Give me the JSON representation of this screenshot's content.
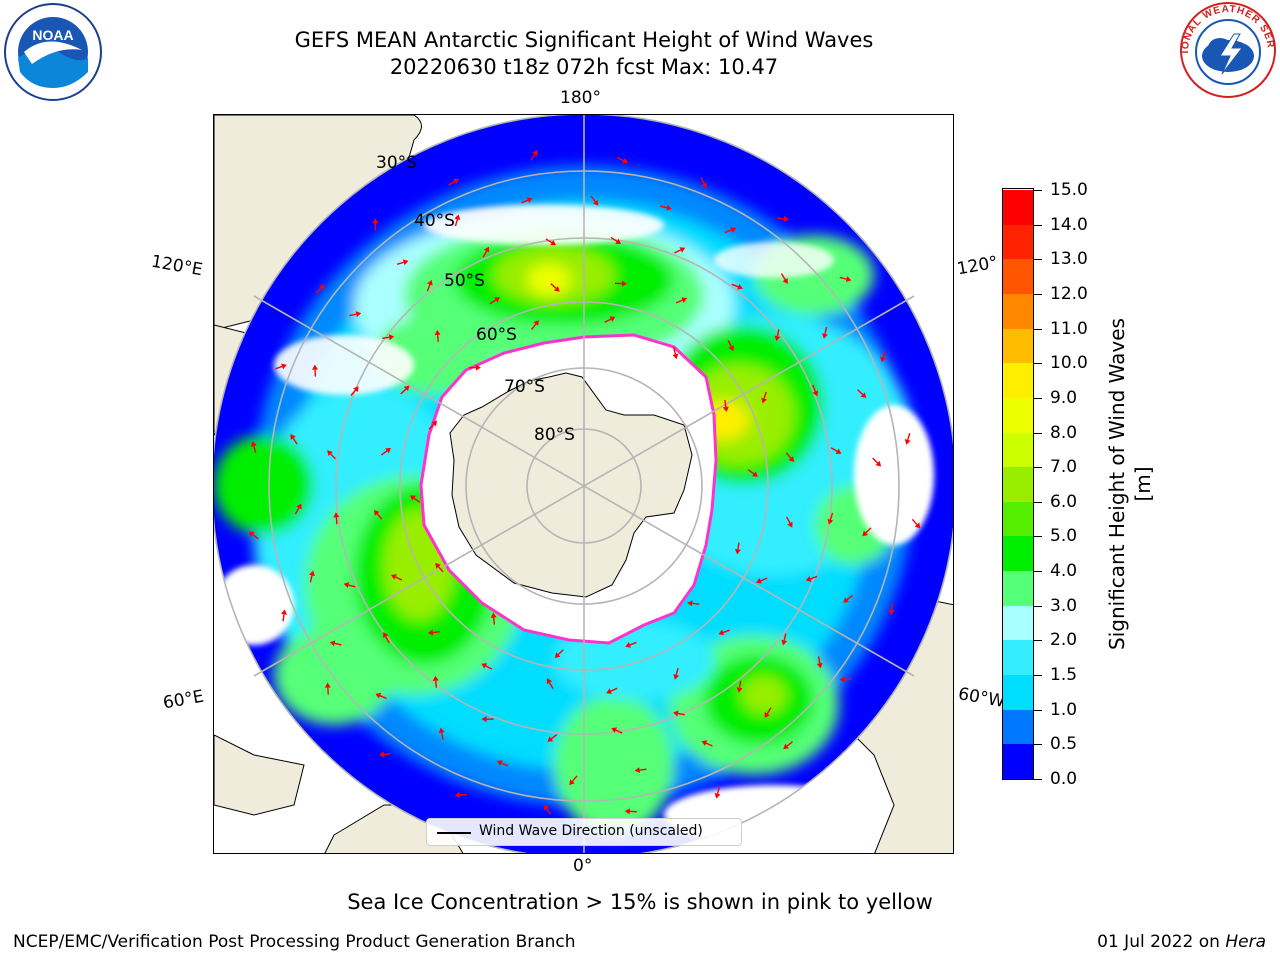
{
  "header": {
    "title": "GEFS MEAN Antarctic Significant Height of Wind Waves",
    "subtitle": "20220630 t18z 072h fcst   Max: 10.47"
  },
  "map": {
    "longitude_labels": {
      "top": "180°",
      "bottom": "0°",
      "upper_left": "120°E",
      "upper_right": "120°",
      "lower_left": "60°E",
      "lower_right": "60°W"
    },
    "latitude_labels": [
      "30°S",
      "40°S",
      "50°S",
      "60°S",
      "70°S",
      "80°S"
    ],
    "legend_label": "Wind Wave Direction (unscaled)",
    "colors": {
      "land": "#efecdc",
      "sea_ice_edge": "#ff33cc",
      "arrows": "#ff0000",
      "gridlines": "#b5b5b5"
    }
  },
  "colorbar": {
    "label": "Significant Height of Wind Waves [m]",
    "ticks": [
      "0.0",
      "0.5",
      "1.0",
      "1.5",
      "2.0",
      "3.0",
      "4.0",
      "5.0",
      "6.0",
      "7.0",
      "8.0",
      "9.0",
      "10.0",
      "11.0",
      "12.0",
      "13.0",
      "14.0",
      "15.0"
    ],
    "colors": [
      "#0000ff",
      "#0077ff",
      "#00ddff",
      "#33eeff",
      "#aaffff",
      "#55ff77",
      "#00ee00",
      "#55ee00",
      "#99ee00",
      "#ccff00",
      "#eeff00",
      "#ffee00",
      "#ffbb00",
      "#ff8800",
      "#ff5500",
      "#ff2200",
      "#ff0000"
    ]
  },
  "notes": {
    "sea_ice": "Sea Ice Concentration > 15% is shown in pink to yellow"
  },
  "footer": {
    "left": "NCEP/EMC/Verification Post Processing Product Generation Branch",
    "right_prefix": "01 Jul 2022 on ",
    "right_machine": "Hera"
  },
  "logos": {
    "noaa": "NOAA",
    "nws": "NATIONAL WEATHER SERVICE"
  }
}
